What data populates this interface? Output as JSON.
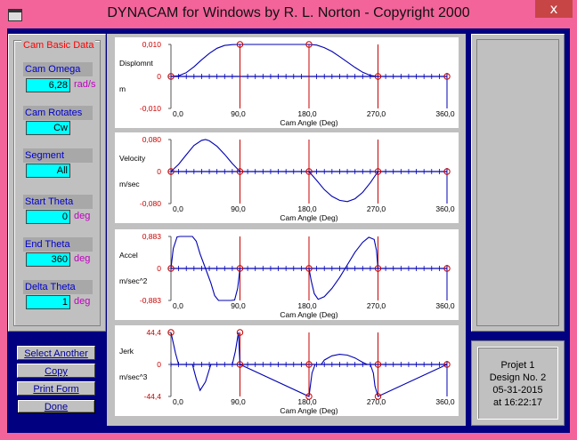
{
  "window": {
    "title": "DYNACAM for Windows by R. L. Norton - Copyright 2000",
    "close_label": "x"
  },
  "basic_data": {
    "caption": "Cam Basic Data",
    "fields": [
      {
        "label": "Cam Omega",
        "value": "6,28",
        "unit": "rad/s"
      },
      {
        "label": "Cam Rotates",
        "value": "Cw",
        "unit": ""
      },
      {
        "label": "Segment",
        "value": "All",
        "unit": ""
      },
      {
        "label": "Start Theta",
        "value": "0",
        "unit": "deg"
      },
      {
        "label": "End Theta",
        "value": "360",
        "unit": "deg"
      },
      {
        "label": "Delta Theta",
        "value": "1",
        "unit": "deg"
      }
    ]
  },
  "buttons": [
    {
      "label": "Select Another"
    },
    {
      "label": "Copy"
    },
    {
      "label": "Print Form"
    },
    {
      "label": "Done"
    }
  ],
  "info": {
    "lines": [
      "Projet 1",
      "Design No.  2",
      "05-31-2015",
      "at 16:22:17"
    ]
  },
  "colors": {
    "curve": "#0000b4",
    "axis": "#0000b4",
    "markers": "#c80000",
    "tick_labels_y": "#c80000"
  },
  "chart_data": [
    {
      "type": "line",
      "name": "Displacement",
      "ylabel": "Displomnt",
      "yunit": "m",
      "xlabel": "Cam Angle (Deg)",
      "yticks": [
        "0,010",
        "0",
        "-0,010"
      ],
      "ylim": [
        -0.01,
        0.01
      ],
      "xticks": [
        "0,0",
        "90,0",
        "180,0",
        "270,0",
        "360,0"
      ],
      "xlim": [
        0,
        360
      ],
      "x": [
        0,
        10,
        20,
        30,
        40,
        50,
        60,
        70,
        80,
        90,
        180,
        190,
        200,
        210,
        220,
        230,
        240,
        250,
        260,
        270,
        360
      ],
      "y": [
        0,
        0.0002,
        0.0012,
        0.003,
        0.0052,
        0.0072,
        0.0088,
        0.0097,
        0.00995,
        0.01,
        0.01,
        0.0098,
        0.009,
        0.0078,
        0.0062,
        0.0045,
        0.0028,
        0.0013,
        0.0003,
        0,
        0
      ],
      "markers": [
        [
          0,
          0
        ],
        [
          90,
          0.01
        ],
        [
          180,
          0.01
        ],
        [
          270,
          0
        ],
        [
          360,
          0
        ]
      ]
    },
    {
      "type": "line",
      "name": "Velocity",
      "ylabel": "Velocity",
      "yunit": "m/sec",
      "xlabel": "Cam Angle (Deg)",
      "yticks": [
        "0,080",
        "0",
        "-0,080"
      ],
      "ylim": [
        -0.08,
        0.08
      ],
      "xticks": [
        "0,0",
        "90,0",
        "180,0",
        "270,0",
        "360,0"
      ],
      "xlim": [
        0,
        360
      ],
      "x": [
        0,
        10,
        20,
        30,
        40,
        45,
        50,
        60,
        70,
        80,
        90,
        180,
        190,
        200,
        210,
        220,
        230,
        240,
        250,
        260,
        270,
        360
      ],
      "y": [
        0,
        0.018,
        0.042,
        0.065,
        0.078,
        0.08,
        0.077,
        0.063,
        0.043,
        0.02,
        0,
        0,
        -0.022,
        -0.045,
        -0.062,
        -0.072,
        -0.075,
        -0.068,
        -0.052,
        -0.028,
        0,
        0
      ],
      "markers": [
        [
          0,
          0
        ],
        [
          90,
          0
        ],
        [
          180,
          0
        ],
        [
          270,
          0
        ],
        [
          360,
          0
        ]
      ]
    },
    {
      "type": "line",
      "name": "Acceleration",
      "ylabel": "Accel",
      "yunit": "m/sec^2",
      "xlabel": "Cam Angle (Deg)",
      "yticks": [
        "0,883",
        "0",
        "-0,883"
      ],
      "ylim": [
        -0.883,
        0.883
      ],
      "xticks": [
        "0,0",
        "90,0",
        "180,0",
        "270,0",
        "360,0"
      ],
      "xlim": [
        0,
        360
      ],
      "x": [
        0,
        3,
        8,
        12,
        28,
        33,
        38,
        45,
        52,
        57,
        62,
        78,
        83,
        87,
        90,
        180,
        183,
        187,
        192,
        200,
        210,
        220,
        230,
        240,
        250,
        258,
        265,
        268,
        270,
        360
      ],
      "y": [
        0,
        0.55,
        0.87,
        0.883,
        0.883,
        0.75,
        0.4,
        0,
        -0.4,
        -0.75,
        -0.883,
        -0.883,
        -0.87,
        -0.55,
        0,
        0,
        -0.35,
        -0.7,
        -0.85,
        -0.78,
        -0.55,
        -0.25,
        0.1,
        0.45,
        0.72,
        0.86,
        0.8,
        0.5,
        0,
        0
      ],
      "markers": [
        [
          0,
          0
        ],
        [
          90,
          0
        ],
        [
          180,
          0
        ],
        [
          270,
          0
        ],
        [
          360,
          0
        ]
      ]
    },
    {
      "type": "line",
      "name": "Jerk",
      "ylabel": "Jerk",
      "yunit": "m/sec^3",
      "xlabel": "Cam Angle (Deg)",
      "yticks": [
        "44,4",
        "0",
        "-44,4"
      ],
      "ylim": [
        -44.4,
        44.4
      ],
      "xticks": [
        "0,0",
        "90,0",
        "180,0",
        "270,0",
        "360,0"
      ],
      "xlim": [
        0,
        360
      ],
      "x": [
        0,
        6,
        10,
        12,
        28,
        33,
        38,
        45,
        52,
        57,
        62,
        78,
        80,
        84,
        88,
        90,
        180,
        184,
        188,
        196,
        200,
        210,
        220,
        230,
        240,
        250,
        256,
        260,
        264,
        266,
        270,
        360
      ],
      "y": [
        44.4,
        15,
        0,
        0,
        0,
        -20,
        -36,
        -24,
        0,
        0,
        0,
        0,
        0,
        18,
        44.4,
        0,
        -44.4,
        -12,
        0,
        0,
        6,
        12,
        14,
        13,
        9,
        3,
        0,
        0,
        -12,
        -30,
        -44.4,
        0
      ],
      "markers": [
        [
          0,
          44.4
        ],
        [
          90,
          44.4
        ],
        [
          90,
          0
        ],
        [
          180,
          -44.4
        ],
        [
          180,
          0
        ],
        [
          270,
          -44.4
        ],
        [
          270,
          0
        ],
        [
          360,
          0
        ]
      ]
    }
  ]
}
